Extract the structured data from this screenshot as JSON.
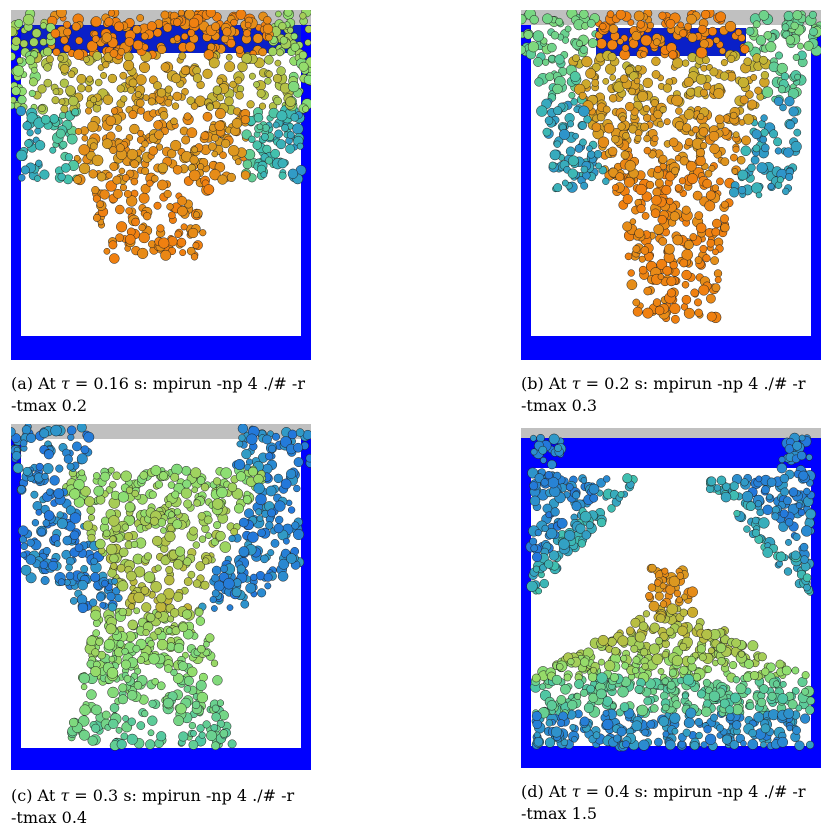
{
  "panels": [
    {
      "id": "a",
      "label": "(a)",
      "caption_pre": "At ",
      "tau_symbol": "τ",
      "caption_post": " = 0.16 s: mpirun -np 4 ./# -r",
      "caption_line2": "-tmax 0.2"
    },
    {
      "id": "b",
      "label": "(b)",
      "caption_pre": "At ",
      "tau_symbol": "τ",
      "caption_post": " = 0.2 s: mpirun -np 4 ./# -r",
      "caption_line2": "-tmax 0.3"
    },
    {
      "id": "c",
      "label": "(c)",
      "caption_pre": "At ",
      "tau_symbol": "τ",
      "caption_post": " = 0.3 s: mpirun -np 4 ./# -r",
      "caption_line2": "-tmax 0.4"
    },
    {
      "id": "d",
      "label": "(d)",
      "caption_pre": "At ",
      "tau_symbol": "τ",
      "caption_post": " = 0.4 s: mpirun -np 4 ./# -r",
      "caption_line2": "-tmax 1.5"
    }
  ],
  "colors": {
    "container": "#0000ff",
    "lid": "#c0c0c0",
    "interior": "#ffffff",
    "particle_orange": "#f08010",
    "particle_yellow": "#c8b030",
    "particle_green": "#90e070",
    "particle_teal": "#40c0b0",
    "particle_blue": "#2070e0",
    "particle_outline": "#202020"
  }
}
